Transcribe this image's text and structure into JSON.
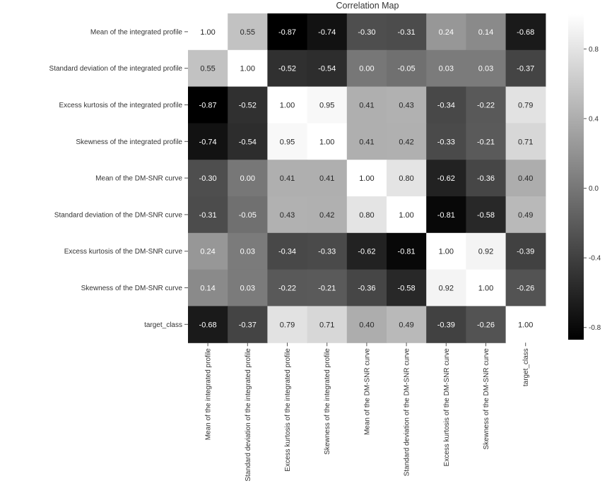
{
  "chart_data": {
    "type": "heatmap",
    "title": "Correlation Map",
    "labels": [
      "Mean of the integrated profile",
      "Standard deviation of the integrated profile",
      "Excess kurtosis of the integrated profile",
      "Skewness of the integrated profile",
      "Mean of the DM-SNR curve",
      "Standard deviation of the DM-SNR curve",
      "Excess kurtosis of the DM-SNR curve",
      "Skewness of the DM-SNR curve",
      "target_class"
    ],
    "values": [
      [
        1.0,
        0.55,
        -0.87,
        -0.74,
        -0.3,
        -0.31,
        0.24,
        0.14,
        -0.68
      ],
      [
        0.55,
        1.0,
        -0.52,
        -0.54,
        0.0,
        -0.05,
        0.03,
        0.03,
        -0.37
      ],
      [
        -0.87,
        -0.52,
        1.0,
        0.95,
        0.41,
        0.43,
        -0.34,
        -0.22,
        0.79
      ],
      [
        -0.74,
        -0.54,
        0.95,
        1.0,
        0.41,
        0.42,
        -0.33,
        -0.21,
        0.71
      ],
      [
        -0.3,
        0.0,
        0.41,
        0.41,
        1.0,
        0.8,
        -0.62,
        -0.36,
        0.4
      ],
      [
        -0.31,
        -0.05,
        0.43,
        0.42,
        0.8,
        1.0,
        -0.81,
        -0.58,
        0.49
      ],
      [
        0.24,
        0.03,
        -0.34,
        -0.33,
        -0.62,
        -0.81,
        1.0,
        0.92,
        -0.39
      ],
      [
        0.14,
        0.03,
        -0.22,
        -0.21,
        -0.36,
        -0.58,
        0.92,
        1.0,
        -0.26
      ],
      [
        -0.68,
        -0.37,
        0.79,
        0.71,
        0.4,
        0.49,
        -0.39,
        -0.26,
        1.0
      ]
    ],
    "value_format": "2 decimals",
    "colorbar": {
      "range": [
        -0.87,
        1.0
      ],
      "ticks": [
        "0.8",
        "0.4",
        "0.0",
        "-0.4",
        "-0.8"
      ],
      "tick_values": [
        0.8,
        0.4,
        0.0,
        -0.4,
        -0.8
      ],
      "colormap": "gray"
    },
    "grid": false
  }
}
